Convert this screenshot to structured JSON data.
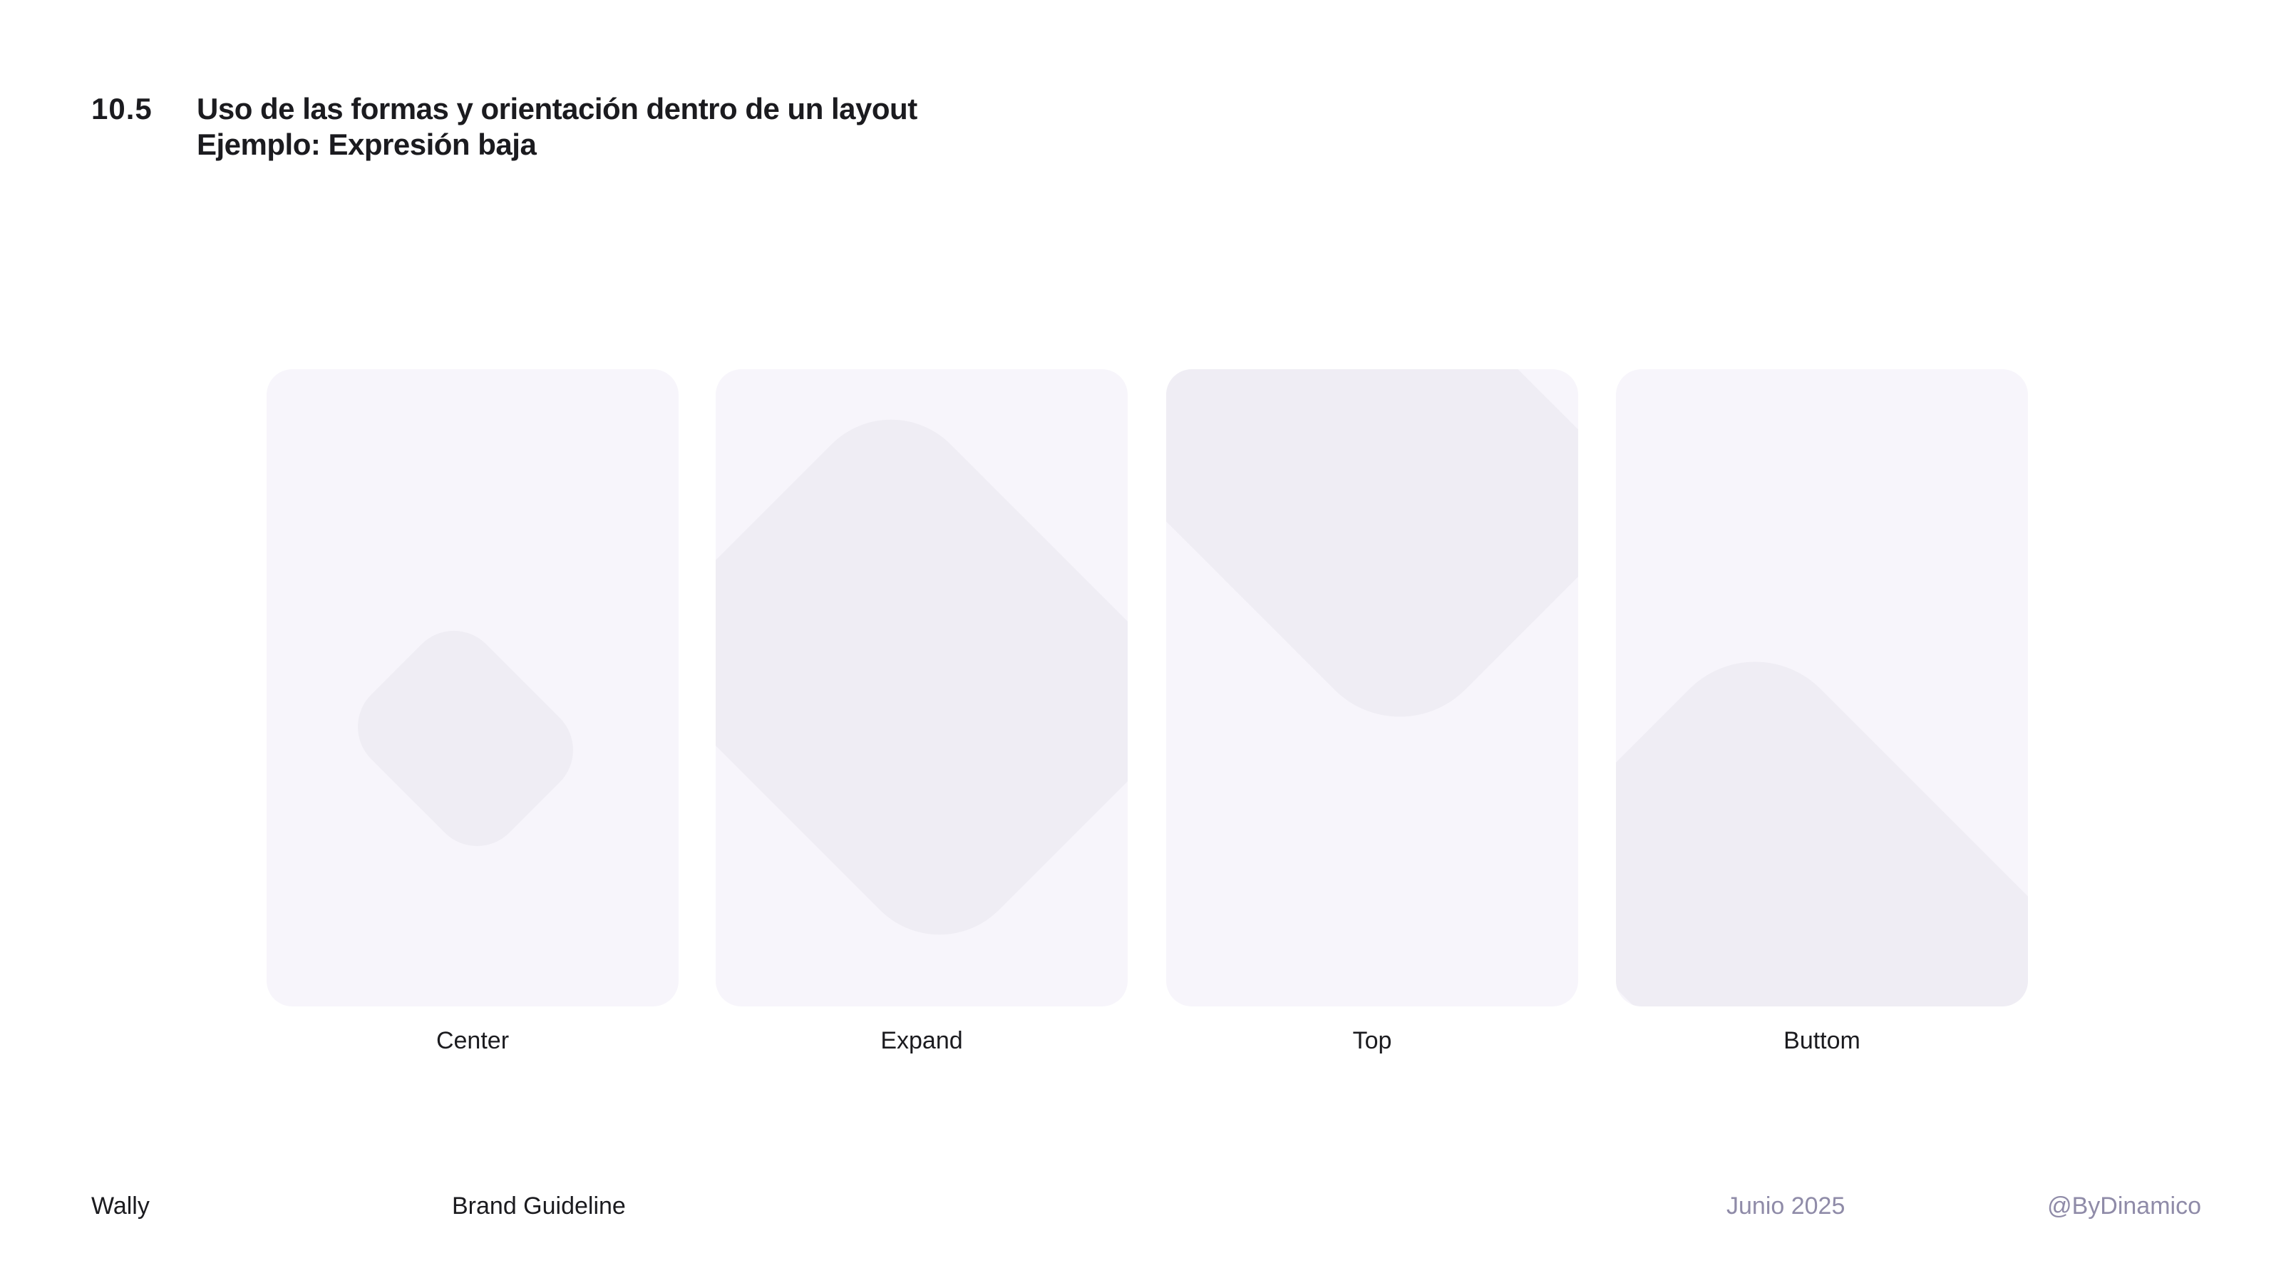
{
  "header": {
    "section_number": "10.5",
    "title_line1": "Uso de las formas y orientación dentro de un layout",
    "title_line2": "Ejemplo: Expresión baja"
  },
  "colors": {
    "card_background": "#f7f5fb",
    "shape_fill": "#efedf4",
    "muted_text": "#8f8ba8",
    "text": "#1b1b1f"
  },
  "cards": [
    {
      "label": "Center",
      "shape": "rounded-diamond-centered"
    },
    {
      "label": "Expand",
      "shape": "rounded-diamond-expanded"
    },
    {
      "label": "Top",
      "shape": "rounded-diamond-anchored-top"
    },
    {
      "label": "Buttom",
      "shape": "rounded-diamond-anchored-bottom"
    }
  ],
  "footer": {
    "brand": "Wally",
    "document": "Brand Guideline",
    "date": "Junio 2025",
    "handle": "@ByDinamico"
  }
}
